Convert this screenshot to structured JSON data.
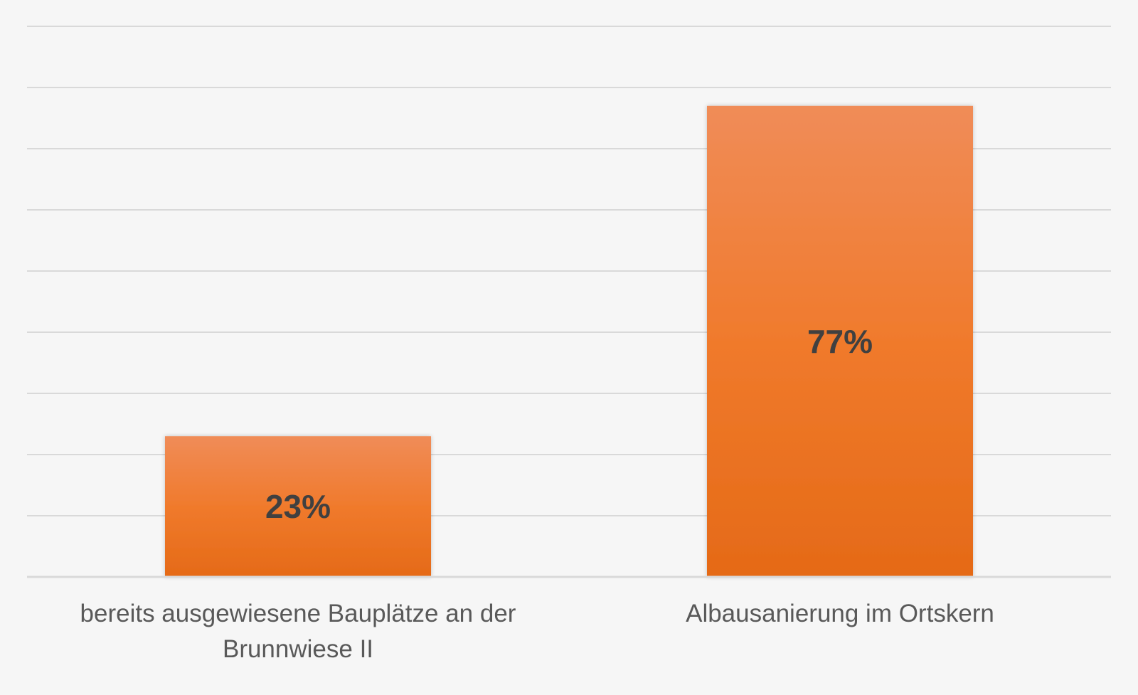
{
  "chart_data": {
    "type": "bar",
    "categories": [
      "bereits ausgewiesene Bauplätze an der Brunnwiese II",
      "Albausanierung im Ortskern"
    ],
    "values": [
      23,
      77
    ],
    "value_labels": [
      "23%",
      "77%"
    ],
    "unit": "%",
    "ylim": [
      0,
      90
    ],
    "gridline_step": 10,
    "grid": true,
    "legend": "none",
    "colors": {
      "bar_top": "#f08c58",
      "bar_mid": "#f07a2c",
      "bar_bottom": "#e56a17",
      "grid": "#d9d9d9",
      "value_label": "#404040",
      "category_label": "#595959",
      "background": "#f6f6f6"
    }
  }
}
